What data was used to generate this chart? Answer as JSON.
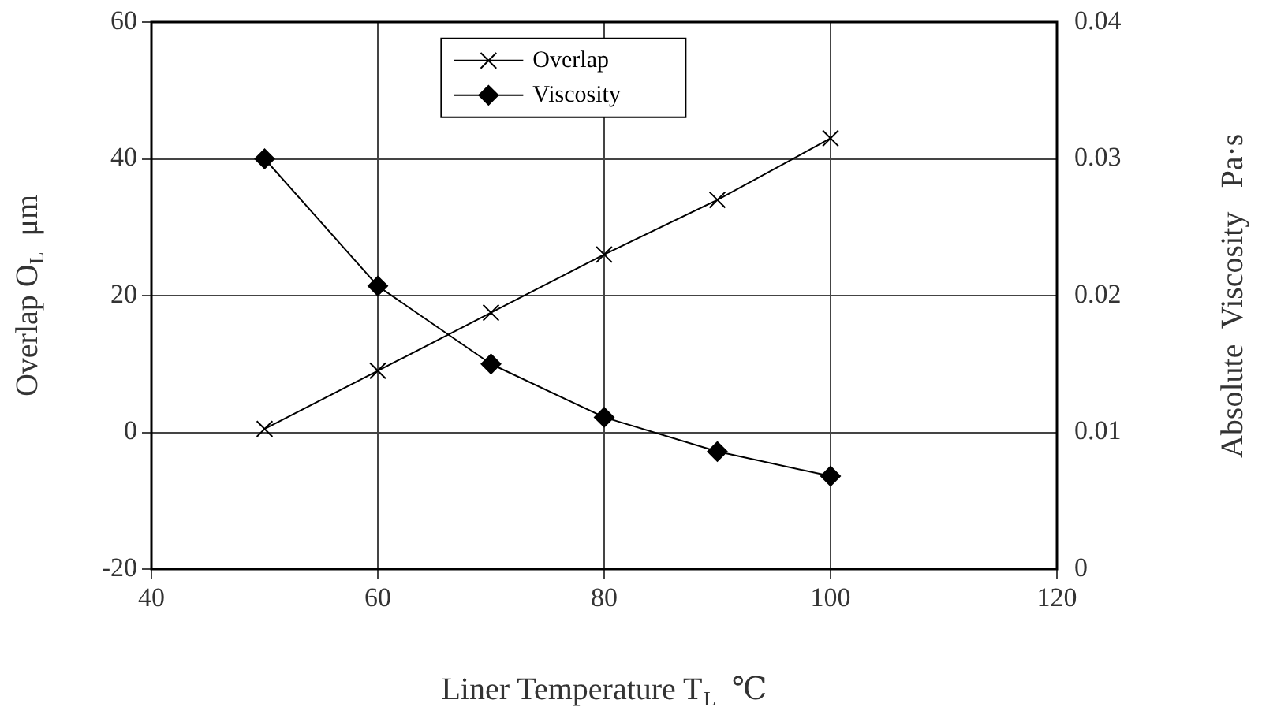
{
  "chart_data": {
    "type": "line",
    "xlabel": "Liner Temperature T$_{L}$  ℃",
    "ylabel": "Overlap O$_{L}$  μm",
    "y2label": "Absolute  Viscosity   Pa·s",
    "x": [
      50,
      60,
      70,
      80,
      90,
      100
    ],
    "series": [
      {
        "name": "Overlap",
        "color": "#000000",
        "marker": "cross",
        "values": [
          0.5,
          9,
          17.5,
          26,
          34,
          43
        ]
      },
      {
        "name": "Viscosity",
        "color": "#000000",
        "marker": "diamond",
        "axis": "y2",
        "values": [
          0.03,
          0.0207,
          0.015,
          0.0111,
          0.0086,
          0.0068
        ]
      }
    ],
    "xlim": [
      40,
      120
    ],
    "xticks": [
      40,
      60,
      80,
      100,
      120
    ],
    "ylim": [
      -20,
      60
    ],
    "yticks": [
      -20,
      0,
      20,
      40,
      60
    ],
    "y2lim": [
      0,
      0.04
    ],
    "y2ticks": [
      0,
      0.01,
      0.02,
      0.03,
      0.04
    ],
    "grid": true,
    "legend": "top"
  }
}
